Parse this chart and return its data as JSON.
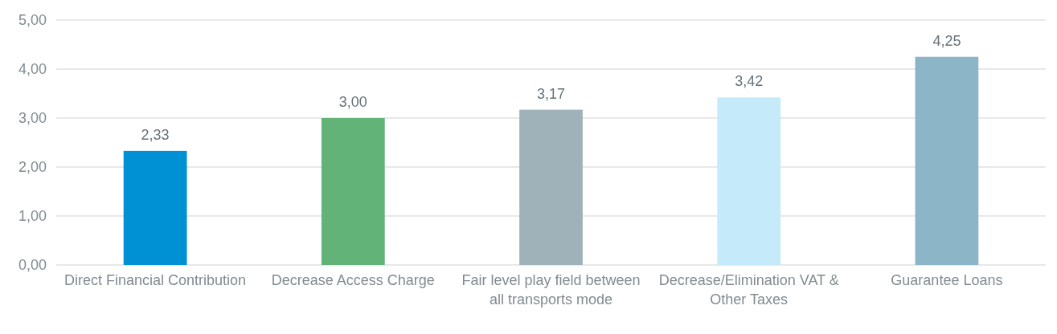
{
  "chart_data": {
    "type": "bar",
    "categories": [
      "Direct Financial Contribution",
      "Decrease Access Charge",
      "Fair level play field between all transports mode",
      "Decrease/Elimination VAT & Other Taxes",
      "Guarantee Loans"
    ],
    "values": [
      2.33,
      3.0,
      3.17,
      3.42,
      4.25
    ],
    "colors": [
      "#0091d5",
      "#62b377",
      "#a0b2b9",
      "#c5ebfb",
      "#8db5c8"
    ],
    "value_labels": [
      "2,33",
      "3,00",
      "3,17",
      "3,42",
      "4,25"
    ],
    "ylim": [
      0,
      5
    ],
    "yticks": [
      {
        "value": 0,
        "label": "0,00"
      },
      {
        "value": 1,
        "label": "1,00"
      },
      {
        "value": 2,
        "label": "2,00"
      },
      {
        "value": 3,
        "label": "3,00"
      },
      {
        "value": 4,
        "label": "4,00"
      },
      {
        "value": 5,
        "label": "5,00"
      }
    ],
    "grid": "y"
  }
}
